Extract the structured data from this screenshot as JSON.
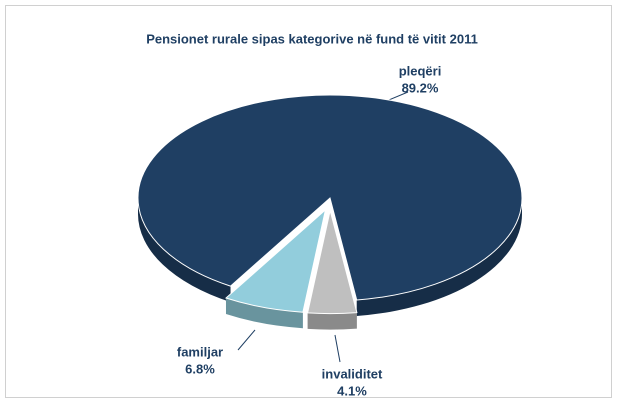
{
  "chart_data": {
    "type": "pie",
    "title": "Pensionet rurale sipas kategorive në fund të vitit 2011",
    "categories": [
      "pleqëri",
      "familjar",
      "invaliditet"
    ],
    "values": [
      89.2,
      6.8,
      4.1
    ],
    "value_labels": [
      "89.2%",
      "6.8%",
      "4.1%"
    ],
    "colors": [
      "#1f3f63",
      "#92cddc",
      "#bfbfbf"
    ]
  }
}
